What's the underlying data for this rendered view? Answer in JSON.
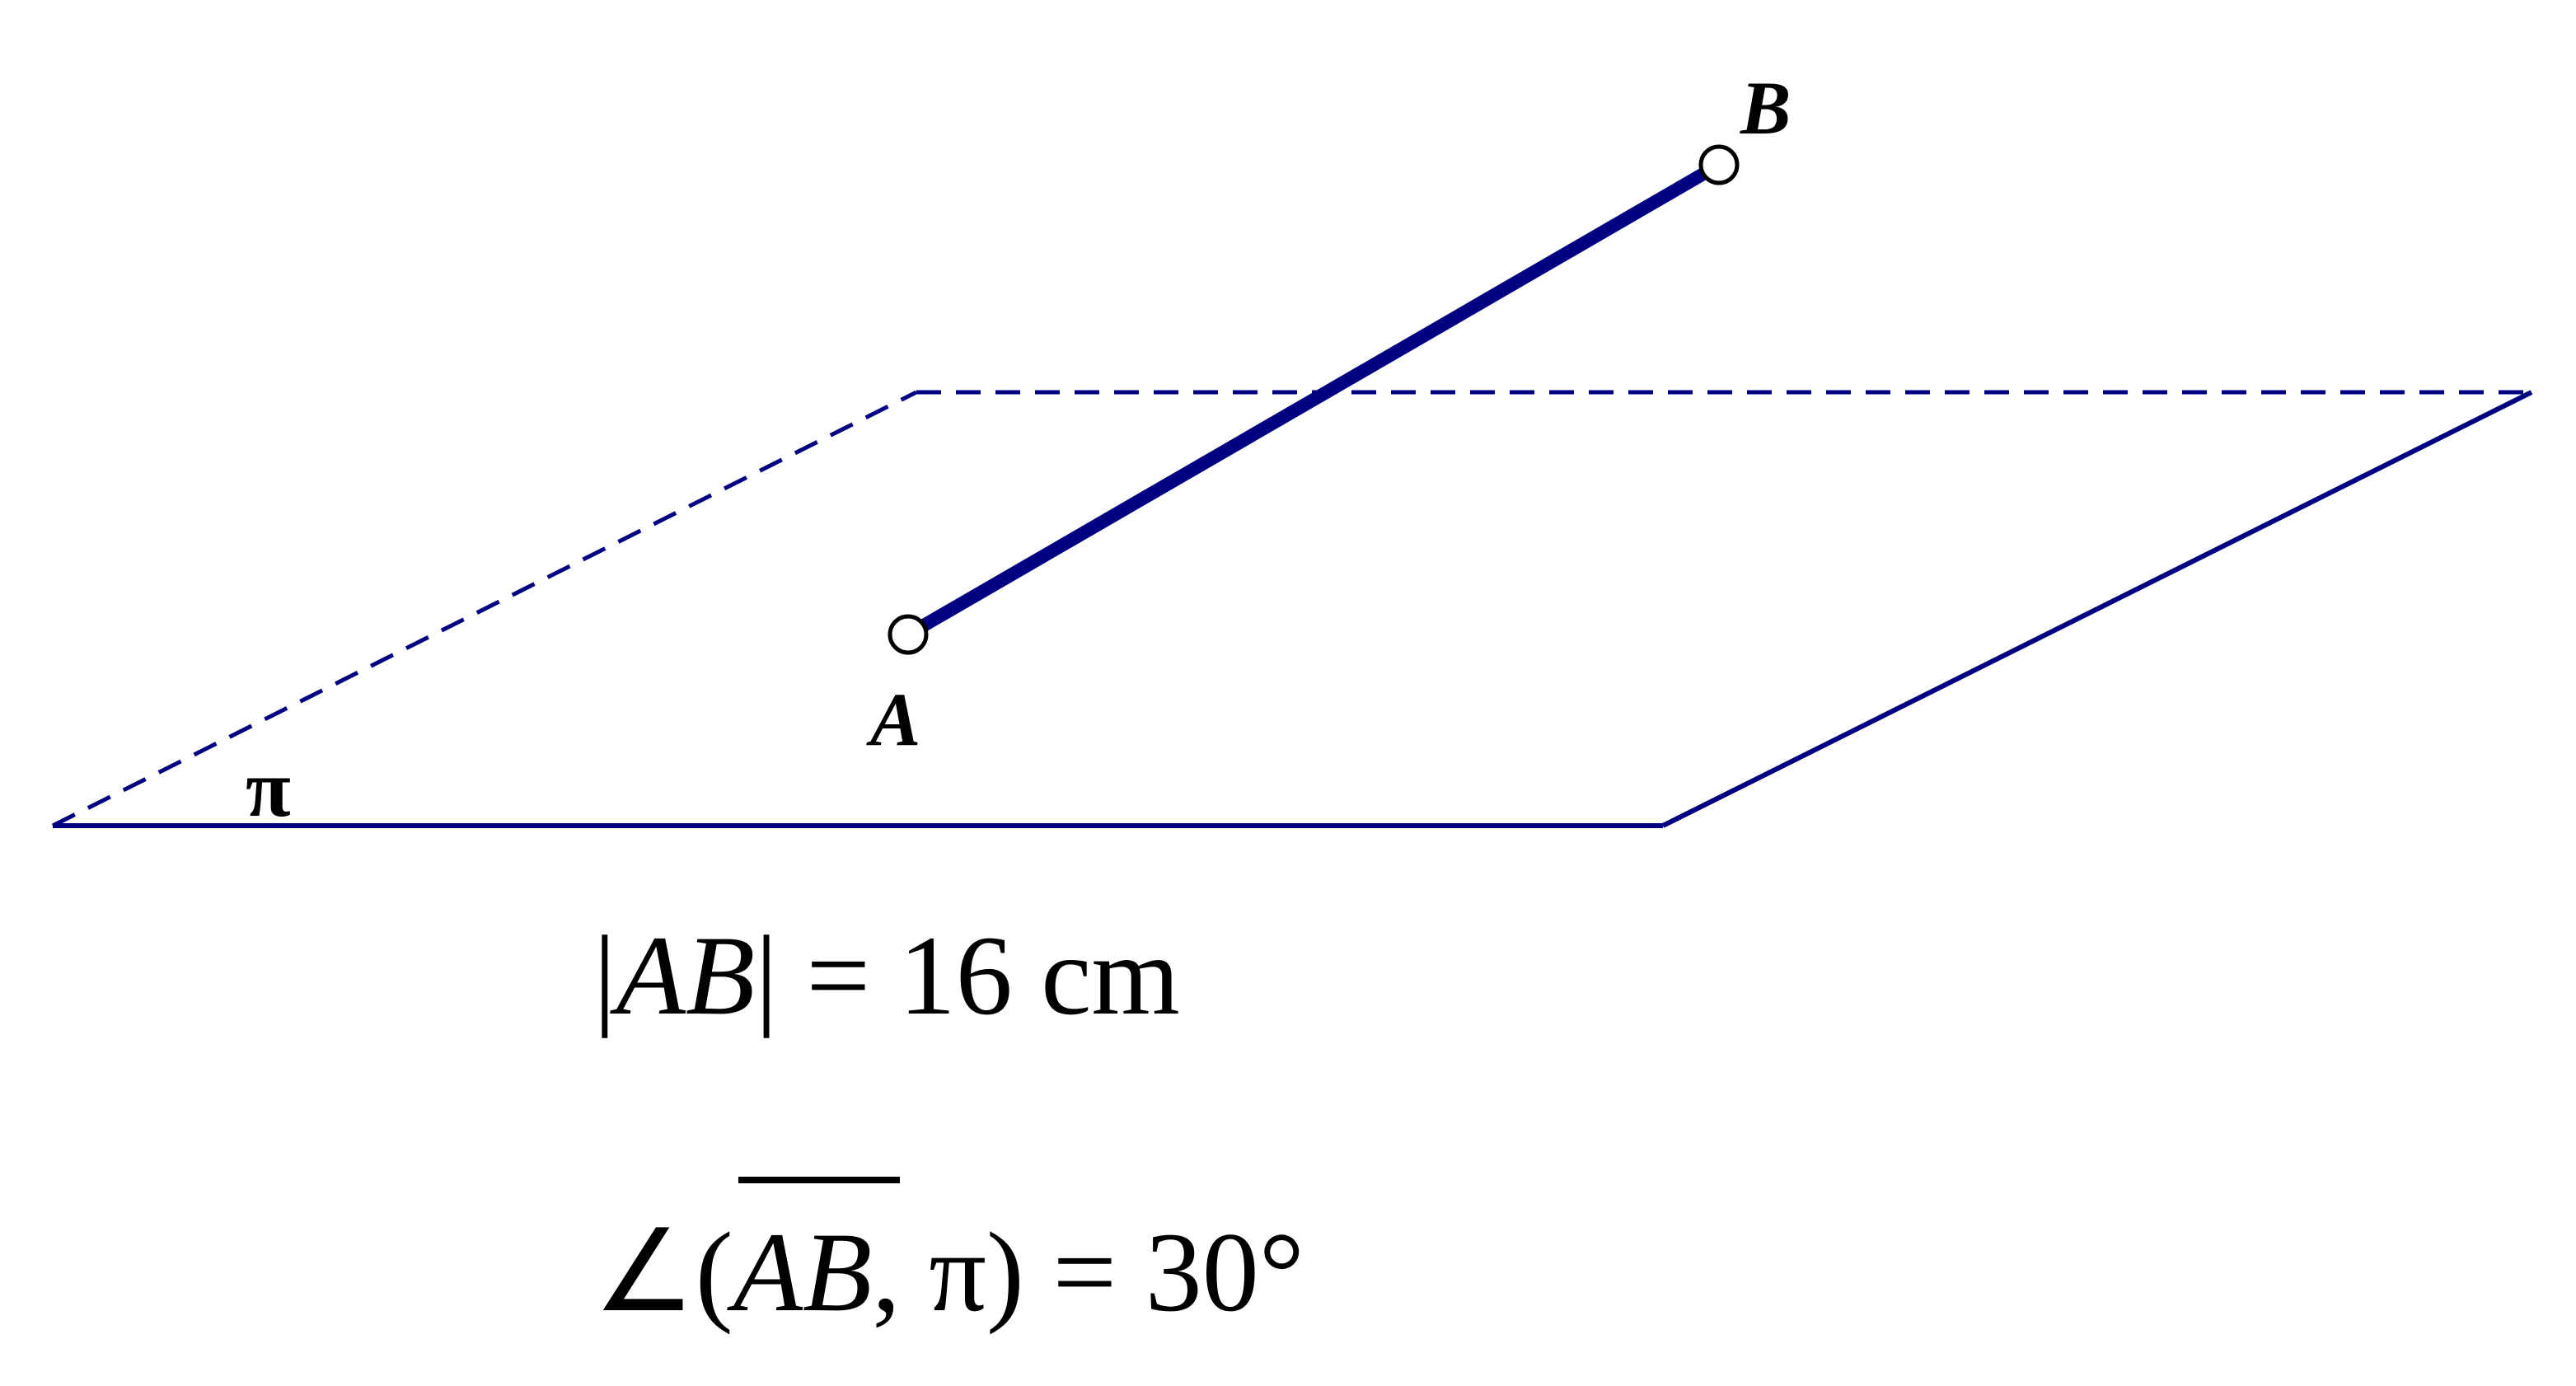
{
  "diagram": {
    "plane_label": "π",
    "point_a_label": "A",
    "point_b_label": "B",
    "formula_length": {
      "bar_left": "|",
      "segment": "AB",
      "bar_right": "|",
      "rest": " = 16 cm"
    },
    "formula_angle": {
      "angle_symbol": "∠",
      "open_paren": "(",
      "segment": "AB",
      "comma": ", ",
      "plane": "π",
      "rest": ") = 30°"
    },
    "colors": {
      "line": "#000080",
      "point_fill": "#ffffff",
      "point_stroke": "#000000",
      "text": "#000000"
    }
  }
}
